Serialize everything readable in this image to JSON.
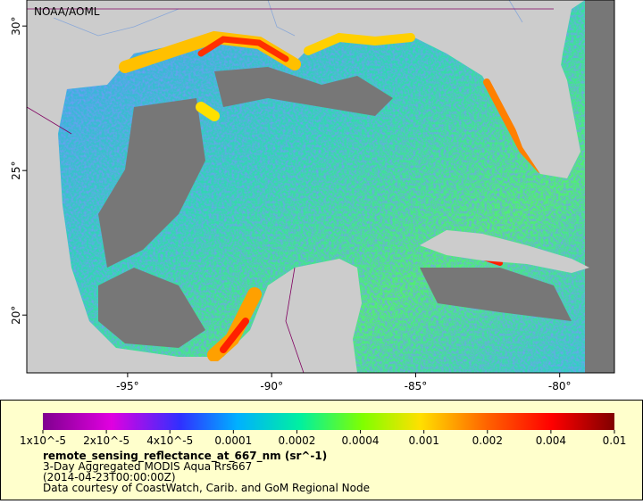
{
  "map": {
    "credit": "NOAA/AOML",
    "lonlim": [
      -98.5,
      -78.1
    ],
    "latlim": [
      18,
      30.9
    ],
    "lon_ticks": [
      {
        "value": -95,
        "label": "-95°"
      },
      {
        "value": -90,
        "label": "-90°"
      },
      {
        "value": -85,
        "label": "-85°"
      },
      {
        "value": -80,
        "label": "-80°"
      }
    ],
    "lat_ticks": [
      {
        "value": 20,
        "label": "20°"
      },
      {
        "value": 25,
        "label": "25°"
      },
      {
        "value": 30,
        "label": "30°"
      }
    ]
  },
  "legend": {
    "colorbar": {
      "ticks": [
        {
          "value": 1e-05,
          "label": "1x10^-5"
        },
        {
          "value": 2e-05,
          "label": "2x10^-5"
        },
        {
          "value": 4e-05,
          "label": "4x10^-5"
        },
        0.0001,
        0.0002,
        0.0004,
        0.001,
        0.002,
        0.004,
        0.01
      ]
    },
    "variable": "remote_sensing_reflectance_at_667_nm (sr^-1)",
    "description": "3-Day Aggregated MODIS Aqua Rrs667",
    "time": "(2014-04-23T00:00:00Z)",
    "credit": "Data courtesy of CoastWatch, Carib. and GoM Regional Node"
  }
}
